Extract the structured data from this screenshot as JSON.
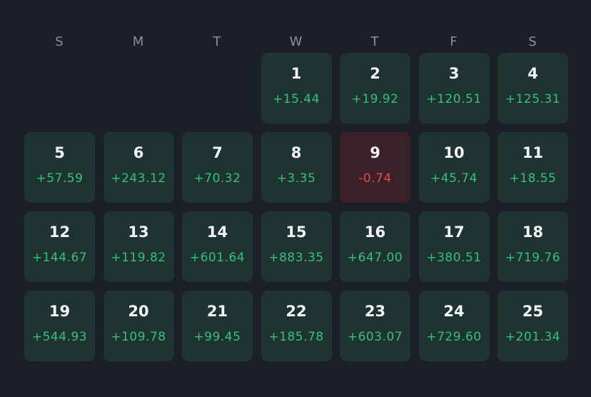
{
  "weekdays": [
    "S",
    "M",
    "T",
    "W",
    "T",
    "F",
    "S"
  ],
  "leading_empty_cells": 3,
  "colors": {
    "background": "#1b2028",
    "positive_cell": "#1f3330",
    "negative_cell": "#3a2228",
    "positive_text": "#35c07e",
    "negative_text": "#e2485a"
  },
  "days": [
    {
      "day": "1",
      "value": "+15.44",
      "sign": "positive"
    },
    {
      "day": "2",
      "value": "+19.92",
      "sign": "positive"
    },
    {
      "day": "3",
      "value": "+120.51",
      "sign": "positive"
    },
    {
      "day": "4",
      "value": "+125.31",
      "sign": "positive"
    },
    {
      "day": "5",
      "value": "+57.59",
      "sign": "positive"
    },
    {
      "day": "6",
      "value": "+243.12",
      "sign": "positive"
    },
    {
      "day": "7",
      "value": "+70.32",
      "sign": "positive"
    },
    {
      "day": "8",
      "value": "+3.35",
      "sign": "positive"
    },
    {
      "day": "9",
      "value": "-0.74",
      "sign": "negative"
    },
    {
      "day": "10",
      "value": "+45.74",
      "sign": "positive"
    },
    {
      "day": "11",
      "value": "+18.55",
      "sign": "positive"
    },
    {
      "day": "12",
      "value": "+144.67",
      "sign": "positive"
    },
    {
      "day": "13",
      "value": "+119.82",
      "sign": "positive"
    },
    {
      "day": "14",
      "value": "+601.64",
      "sign": "positive"
    },
    {
      "day": "15",
      "value": "+883.35",
      "sign": "positive"
    },
    {
      "day": "16",
      "value": "+647.00",
      "sign": "positive"
    },
    {
      "day": "17",
      "value": "+380.51",
      "sign": "positive"
    },
    {
      "day": "18",
      "value": "+719.76",
      "sign": "positive"
    },
    {
      "day": "19",
      "value": "+544.93",
      "sign": "positive"
    },
    {
      "day": "20",
      "value": "+109.78",
      "sign": "positive"
    },
    {
      "day": "21",
      "value": "+99.45",
      "sign": "positive"
    },
    {
      "day": "22",
      "value": "+185.78",
      "sign": "positive"
    },
    {
      "day": "23",
      "value": "+603.07",
      "sign": "positive"
    },
    {
      "day": "24",
      "value": "+729.60",
      "sign": "positive"
    },
    {
      "day": "25",
      "value": "+201.34",
      "sign": "positive"
    }
  ]
}
